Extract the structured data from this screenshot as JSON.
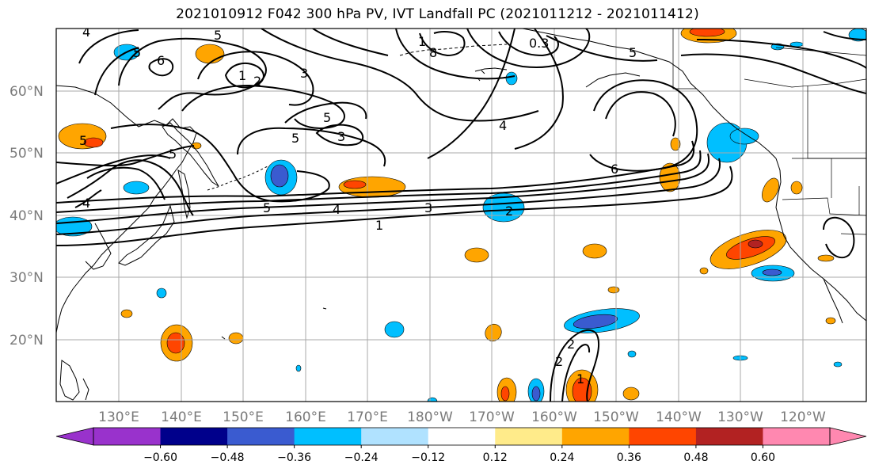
{
  "title": "2021010912 F042 300 hPa PV, IVT Landfall PC (2021011212 - 2021011412)",
  "lat_labels": [
    "60°N",
    "50°N",
    "40°N",
    "30°N",
    "20°N"
  ],
  "lon_labels": [
    "130°E",
    "140°E",
    "150°E",
    "160°E",
    "170°E",
    "180°W",
    "170°W",
    "160°W",
    "150°W",
    "140°W",
    "130°W",
    "120°W"
  ],
  "colorbar": {
    "colors": [
      "#9932cc",
      "#00008b",
      "#3a5bd0",
      "#00bfff",
      "#b0e2ff",
      "#ffffff",
      "#ffeb8a",
      "#ffa500",
      "#ff4500",
      "#b22222",
      "#ff88b0"
    ],
    "tick_labels": [
      "-0.60",
      "-0.48",
      "-0.36",
      "-0.24",
      "-0.12",
      "0.12",
      "0.24",
      "0.36",
      "0.48",
      "0.60"
    ]
  },
  "pv_contour_labels": [
    "4",
    "5",
    "6",
    "5",
    "1",
    "2",
    "3",
    "5",
    "4",
    "5",
    "3",
    "5",
    "1",
    "8",
    "0.3",
    "5",
    "4",
    "6",
    "5",
    "4",
    "3",
    "2",
    "1",
    "5",
    "2",
    "1",
    "2"
  ]
}
